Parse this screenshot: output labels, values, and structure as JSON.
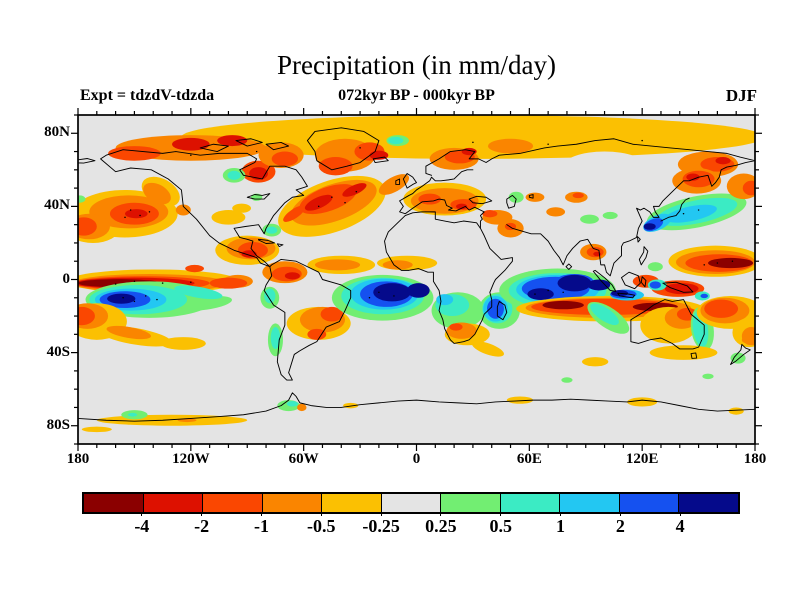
{
  "header": {
    "title": "Precipitation (in mm/day)",
    "subtitle": "072kyr BP - 000kyr BP",
    "experiment_label": "Expt = tdzdV-tdzda",
    "season": "DJF"
  },
  "axes": {
    "x_ticks": [
      {
        "label": "180",
        "deg": 0
      },
      {
        "label": "120W",
        "deg": 60
      },
      {
        "label": "60W",
        "deg": 120
      },
      {
        "label": "0",
        "deg": 180
      },
      {
        "label": "60E",
        "deg": 240
      },
      {
        "label": "120E",
        "deg": 300
      },
      {
        "label": "180",
        "deg": 360
      }
    ],
    "y_ticks": [
      {
        "label": "80N",
        "deg_from_top": 10
      },
      {
        "label": "40N",
        "deg_from_top": 50
      },
      {
        "label": "0",
        "deg_from_top": 90
      },
      {
        "label": "40S",
        "deg_from_top": 130
      },
      {
        "label": "80S",
        "deg_from_top": 170
      }
    ],
    "minor_step_deg": 10,
    "x_major_step_deg": 60,
    "y_major_step_deg": 40
  },
  "chart_data": {
    "type": "heatmap",
    "title": "Precipitation (in mm/day)",
    "subtitle": "072kyr BP - 000kyr BP",
    "experiment": "tdzdV-tdzda",
    "season": "DJF",
    "units": "mm/day",
    "projection": "equirectangular",
    "lon_range": [
      -180,
      180
    ],
    "lat_range": [
      -90,
      90
    ],
    "x_tick_labels": [
      "180",
      "120W",
      "60W",
      "0",
      "60E",
      "120E",
      "180"
    ],
    "y_tick_labels": [
      "80N",
      "40N",
      "0",
      "40S",
      "80S"
    ],
    "levels": [
      -4,
      -2,
      -1,
      -0.5,
      -0.25,
      0.25,
      0.5,
      1,
      2,
      4
    ],
    "palette": [
      "#8B0000",
      "#DD1100",
      "#FA4701",
      "#FA8500",
      "#FBC002",
      "#E4E4E4",
      "#72EE72",
      "#3BEBC4",
      "#23C7F2",
      "#1551F0",
      "#050A8B"
    ],
    "colorbar_labels": [
      "-4",
      "-2",
      "-1",
      "-0.5",
      "-0.25",
      "0.25",
      "0.5",
      "1",
      "2",
      "4"
    ],
    "background_color": "#E4E4E4",
    "region_format": [
      "lon",
      "lat",
      "rx_deg",
      "ry_deg",
      "rot_deg",
      "value_mm_per_day"
    ],
    "regions": [
      [
        30,
        78,
        155,
        12,
        0,
        -0.35
      ],
      [
        -120,
        72,
        40,
        7,
        0,
        -0.75
      ],
      [
        -150,
        69,
        14,
        4,
        0,
        -1.5
      ],
      [
        -120,
        74,
        10,
        3.5,
        0,
        -3
      ],
      [
        -98,
        76,
        8,
        3,
        0,
        -3
      ],
      [
        -84,
        59,
        9,
        6,
        0,
        -1.5
      ],
      [
        -84,
        58,
        5,
        3.5,
        0,
        -3
      ],
      [
        -72,
        68,
        12,
        7,
        0,
        -0.75
      ],
      [
        -70,
        66,
        7,
        4,
        0,
        -1.5
      ],
      [
        -38,
        68,
        16,
        9,
        0,
        -0.75
      ],
      [
        -43,
        62,
        9,
        5,
        0,
        -1.5
      ],
      [
        -25,
        70,
        8,
        5,
        0,
        -1.5
      ],
      [
        -20,
        68,
        5,
        2.5,
        0,
        -3
      ],
      [
        -10,
        76,
        6,
        3,
        0,
        0.35
      ],
      [
        -11,
        76,
        4,
        2,
        0,
        0.75
      ],
      [
        20,
        66,
        13,
        6,
        0,
        -0.75
      ],
      [
        23,
        67,
        8,
        3.5,
        0,
        -1.5
      ],
      [
        28,
        70,
        4,
        2,
        0,
        -3
      ],
      [
        50,
        73,
        12,
        4,
        0,
        -0.75
      ],
      [
        100,
        62,
        22,
        8,
        0,
        0
      ],
      [
        155,
        63,
        16,
        7,
        0,
        -0.75
      ],
      [
        160,
        63,
        9,
        4,
        0,
        -1.5
      ],
      [
        163,
        65,
        4,
        2,
        0,
        -3
      ],
      [
        -172,
        28,
        14,
        8,
        0,
        -0.35
      ],
      [
        -155,
        36,
        28,
        13,
        0,
        -0.35
      ],
      [
        -136,
        48,
        11,
        7,
        30,
        -0.35
      ],
      [
        -153,
        37,
        21,
        9,
        0,
        -0.75
      ],
      [
        -138,
        47,
        8,
        5,
        30,
        -0.75
      ],
      [
        -174,
        29,
        11,
        7,
        0,
        -0.75
      ],
      [
        -150,
        36,
        13,
        6,
        0,
        -1.5
      ],
      [
        -177,
        29,
        7,
        5,
        0,
        -1.5
      ],
      [
        -149,
        36,
        6,
        2.5,
        0,
        -3
      ],
      [
        -179,
        44,
        3,
        2,
        0,
        0.35
      ],
      [
        -124,
        38,
        4,
        3,
        0,
        -0.75
      ],
      [
        -100,
        34,
        9,
        4,
        0,
        -0.35
      ],
      [
        -93,
        39,
        5,
        2.5,
        0,
        -0.35
      ],
      [
        -85,
        45,
        3,
        2,
        0,
        0.35
      ],
      [
        -97,
        57,
        6,
        4,
        0,
        0.35
      ],
      [
        -97,
        57,
        3.5,
        2.5,
        0,
        0.75
      ],
      [
        -45,
        40,
        30,
        14,
        -20,
        -0.35
      ],
      [
        -44,
        42,
        24,
        10,
        -20,
        -0.75
      ],
      [
        -12,
        52,
        9,
        4,
        -30,
        -0.75
      ],
      [
        -47,
        44,
        16,
        6.5,
        -20,
        -1.5
      ],
      [
        -65,
        36,
        7,
        2.5,
        -35,
        -1.5
      ],
      [
        -52,
        42,
        8,
        3,
        -25,
        -3
      ],
      [
        -33,
        49,
        7,
        2.5,
        -25,
        -3
      ],
      [
        -77,
        27,
        5,
        3.5,
        0,
        0.35
      ],
      [
        -77,
        27,
        3,
        2,
        0,
        0.75
      ],
      [
        -90,
        16,
        17,
        8,
        0,
        -0.35
      ],
      [
        -88,
        17,
        13,
        6,
        0,
        -0.75
      ],
      [
        -87,
        16,
        8,
        4.5,
        0,
        -1.5
      ],
      [
        -89,
        14,
        4,
        2,
        0,
        -3
      ],
      [
        -70,
        4,
        12,
        6,
        0,
        -0.75
      ],
      [
        -69,
        3,
        8,
        4,
        0,
        -1.5
      ],
      [
        -66,
        2,
        4,
        2,
        0,
        -3
      ],
      [
        -40,
        8,
        18,
        5,
        0,
        -0.35
      ],
      [
        -42,
        8,
        12,
        3,
        0,
        -0.75
      ],
      [
        -5,
        9,
        16,
        4,
        0,
        -0.35
      ],
      [
        -10,
        8,
        8,
        2.5,
        0,
        -0.75
      ],
      [
        15,
        44,
        22,
        9,
        0,
        -0.35
      ],
      [
        15,
        43,
        18,
        7,
        0,
        -0.75
      ],
      [
        7,
        44,
        6,
        3,
        0,
        -1.5
      ],
      [
        25,
        41,
        7,
        3,
        0,
        -1.5
      ],
      [
        24,
        40,
        3,
        1.5,
        0,
        -3
      ],
      [
        43,
        34,
        8,
        4,
        0,
        -0.75
      ],
      [
        39,
        36,
        4,
        2,
        0,
        -1.5
      ],
      [
        50,
        28,
        7,
        5,
        0,
        -0.75
      ],
      [
        50,
        29,
        3,
        2,
        0,
        -1.5
      ],
      [
        53,
        45,
        4,
        3,
        0,
        0.35
      ],
      [
        63,
        45,
        5,
        2.5,
        0,
        -0.75
      ],
      [
        85,
        45,
        6,
        3,
        0,
        -0.75
      ],
      [
        86,
        46,
        3,
        1.5,
        0,
        -1.5
      ],
      [
        74,
        37,
        5,
        2.5,
        0,
        -0.75
      ],
      [
        92,
        33,
        5,
        2.5,
        0,
        0.35
      ],
      [
        103,
        35,
        4,
        2,
        0,
        0.35
      ],
      [
        -140,
        -1,
        46,
        6.5,
        0,
        -0.35
      ],
      [
        -142,
        -2,
        41,
        5,
        0,
        -0.75
      ],
      [
        -146,
        -2,
        36,
        3.8,
        0,
        -1.5
      ],
      [
        -95,
        -1,
        8,
        3.5,
        0,
        -0.75
      ],
      [
        -100,
        -2,
        10,
        3,
        0,
        -1.5
      ],
      [
        -150,
        -2,
        32,
        3,
        0,
        -3
      ],
      [
        -158,
        -2,
        22,
        2.2,
        0,
        -5
      ],
      [
        -118,
        6,
        5,
        2,
        0,
        -1.5
      ],
      [
        -142,
        -11,
        34,
        10,
        0,
        0.35
      ],
      [
        -112,
        -13,
        14,
        3.5,
        -8,
        0.35
      ],
      [
        -148,
        -11,
        26,
        8,
        0,
        0.75
      ],
      [
        -116,
        -7,
        13,
        3,
        10,
        0.75
      ],
      [
        -152,
        -11,
        19,
        6,
        0,
        1.5
      ],
      [
        -155,
        -11,
        13.5,
        4.6,
        0,
        3
      ],
      [
        -157,
        -10.5,
        7.5,
        2.8,
        0,
        5
      ],
      [
        -170,
        -23,
        16,
        10,
        0,
        -0.35
      ],
      [
        -175,
        -20,
        11,
        7,
        0,
        -0.75
      ],
      [
        -178,
        -20,
        7,
        5,
        0,
        -1.5
      ],
      [
        -150,
        -31,
        20,
        4.5,
        10,
        -0.35
      ],
      [
        -153,
        -29,
        12,
        3,
        10,
        -0.75
      ],
      [
        -124,
        -35,
        12,
        3.5,
        0,
        -0.35
      ],
      [
        -78,
        -10,
        5,
        6,
        0,
        0.35
      ],
      [
        -78,
        -9,
        3,
        4,
        0,
        0.75
      ],
      [
        -52,
        -24,
        17,
        9,
        0,
        -0.35
      ],
      [
        -50,
        -22,
        12,
        7,
        0,
        -0.75
      ],
      [
        -45,
        -19,
        6,
        4,
        0,
        -1.5
      ],
      [
        -53,
        -30,
        5,
        3,
        0,
        -1.5
      ],
      [
        -75,
        -33,
        4,
        9,
        0,
        0.35
      ],
      [
        -75,
        -32,
        2.5,
        6,
        0,
        0.75
      ],
      [
        -18,
        -10,
        27,
        12.5,
        0,
        0.35
      ],
      [
        -18,
        -9,
        22,
        10,
        0,
        0.75
      ],
      [
        -17,
        -8,
        18,
        8.5,
        0,
        1.5
      ],
      [
        -16,
        -8,
        14,
        7,
        0,
        3
      ],
      [
        -13,
        -7,
        10,
        5,
        0,
        5
      ],
      [
        1,
        -6,
        6,
        4,
        0,
        5
      ],
      [
        22,
        -17,
        14,
        10,
        0,
        0.35
      ],
      [
        19,
        -14,
        9,
        6,
        0,
        0.75
      ],
      [
        15,
        -11,
        4.5,
        3,
        0,
        1.5
      ],
      [
        27,
        -30,
        12,
        6,
        0,
        -0.35
      ],
      [
        24,
        -28,
        8,
        4.5,
        0,
        -0.75
      ],
      [
        21,
        -26,
        3.5,
        2,
        0,
        -1.5
      ],
      [
        38,
        -38,
        9,
        3,
        20,
        -0.35
      ],
      [
        44,
        -17,
        11,
        10,
        0,
        0.35
      ],
      [
        43,
        -16,
        8,
        8,
        0,
        0.75
      ],
      [
        42,
        -16,
        6.5,
        7,
        0,
        1.5
      ],
      [
        42,
        -16,
        4.5,
        5.5,
        0,
        3
      ],
      [
        75,
        -6,
        31,
        12,
        0,
        0.35
      ],
      [
        75,
        -6,
        26,
        9.5,
        0,
        0.75
      ],
      [
        75,
        -5.5,
        22,
        8,
        0,
        1.5
      ],
      [
        74,
        -5,
        18,
        6.5,
        0,
        3
      ],
      [
        84,
        -1,
        10,
        4,
        0,
        3
      ],
      [
        66,
        -8,
        7,
        3.2,
        0,
        5
      ],
      [
        84,
        -2,
        9,
        4.5,
        0,
        5
      ],
      [
        97,
        -3,
        6,
        3,
        0,
        5
      ],
      [
        103,
        -16,
        50,
        7,
        0,
        -0.35
      ],
      [
        102,
        -15.5,
        44,
        5.5,
        0,
        -0.75
      ],
      [
        100,
        -15,
        39,
        4.4,
        0,
        -1.5
      ],
      [
        78,
        -14,
        11,
        2.3,
        0,
        -5
      ],
      [
        127,
        -15,
        12,
        2.3,
        0,
        -5
      ],
      [
        102,
        -21,
        13,
        5.5,
        35,
        0.35
      ],
      [
        100,
        -19,
        9,
        3.5,
        35,
        0.75
      ],
      [
        112,
        -8.5,
        9,
        3,
        0,
        1.5
      ],
      [
        110,
        -8,
        7,
        2.4,
        0,
        3
      ],
      [
        108,
        -7.5,
        4.5,
        1.7,
        0,
        5
      ],
      [
        122,
        -1,
        7,
        3.5,
        0,
        -1.5
      ],
      [
        139,
        -5,
        14,
        4.5,
        0,
        -1.5
      ],
      [
        141,
        -5,
        9,
        3,
        0,
        -3
      ],
      [
        128,
        -3,
        5,
        3,
        0,
        0.75
      ],
      [
        127,
        -3,
        3,
        2,
        0,
        3
      ],
      [
        152,
        -9,
        4,
        2.5,
        0,
        0.75
      ],
      [
        153,
        -9,
        2,
        1.2,
        0,
        3
      ],
      [
        134,
        -25,
        15,
        10,
        0,
        -0.35
      ],
      [
        141,
        -21,
        9,
        6,
        0,
        -0.75
      ],
      [
        144,
        -19,
        5.5,
        3.5,
        0,
        -1.5
      ],
      [
        152,
        -27,
        6,
        12,
        -8,
        0.35
      ],
      [
        151,
        -27,
        4,
        10,
        -8,
        0.75
      ],
      [
        167,
        -18,
        18,
        9,
        0,
        -0.35
      ],
      [
        164,
        -17,
        13,
        7,
        0,
        -0.75
      ],
      [
        162,
        -16,
        9,
        5,
        0,
        -1.5
      ],
      [
        177,
        -29,
        9,
        8,
        0,
        -0.35
      ],
      [
        178,
        -31,
        5,
        5,
        0,
        -0.75
      ],
      [
        176,
        -33,
        3,
        2,
        0,
        -0.75
      ],
      [
        171,
        -43,
        4,
        3,
        0,
        0.35
      ],
      [
        142,
        -40,
        18,
        4,
        0,
        -0.35
      ],
      [
        95,
        -45,
        7,
        2.5,
        0,
        -0.35
      ],
      [
        159,
        10,
        25,
        8.5,
        0,
        -0.35
      ],
      [
        159,
        9.5,
        21,
        6.5,
        0,
        -0.75
      ],
      [
        161,
        9,
        18,
        4.8,
        0,
        -1.5
      ],
      [
        167,
        9,
        12,
        2.8,
        0,
        -5
      ],
      [
        127,
        7,
        4,
        2.5,
        0,
        0.35
      ],
      [
        149,
        37,
        27,
        8.5,
        -12,
        0.35
      ],
      [
        149,
        37,
        22,
        6.3,
        -12,
        0.75
      ],
      [
        146,
        36,
        14,
        4,
        -12,
        1.5
      ],
      [
        128,
        31,
        8,
        4,
        -25,
        1.5
      ],
      [
        126,
        30,
        5.5,
        3,
        -25,
        3
      ],
      [
        124,
        29,
        3.2,
        1.8,
        0,
        5
      ],
      [
        149,
        54,
        13,
        7,
        0,
        -0.75
      ],
      [
        150,
        55,
        8.5,
        4.5,
        0,
        -1.5
      ],
      [
        147,
        56,
        3.5,
        2,
        0,
        -3
      ],
      [
        174,
        51,
        9,
        7,
        0,
        -0.75
      ],
      [
        178,
        50,
        4.5,
        4,
        0,
        -1.5
      ],
      [
        94,
        15,
        7,
        4.5,
        0,
        -0.75
      ],
      [
        95,
        15,
        4.5,
        2.8,
        0,
        -1.5
      ],
      [
        96,
        14,
        2,
        1.2,
        0,
        -3
      ],
      [
        -130,
        -77,
        40,
        3,
        0,
        -0.35
      ],
      [
        -122,
        -77,
        5,
        1,
        0,
        -0.75
      ],
      [
        -170,
        -82,
        8,
        1.5,
        0,
        -0.35
      ],
      [
        -150,
        -74,
        7,
        2.5,
        0,
        0.35
      ],
      [
        -151,
        -74,
        2.5,
        1,
        0,
        0.75
      ],
      [
        -68,
        -69,
        6,
        3,
        0,
        0.35
      ],
      [
        -66,
        -68,
        3,
        1.5,
        0,
        0.75
      ],
      [
        -61,
        -70,
        2.5,
        2,
        0,
        -0.75
      ],
      [
        -35,
        -69,
        4,
        1.5,
        0,
        -0.35
      ],
      [
        55,
        -66,
        7,
        2,
        0,
        -0.35
      ],
      [
        120,
        -67,
        8,
        2.5,
        0,
        -0.35
      ],
      [
        170,
        -72,
        4,
        2,
        0,
        -0.35
      ],
      [
        80,
        -55,
        3,
        1.5,
        0,
        0.35
      ],
      [
        155,
        -53,
        3,
        1.5,
        0,
        0.35
      ]
    ]
  }
}
